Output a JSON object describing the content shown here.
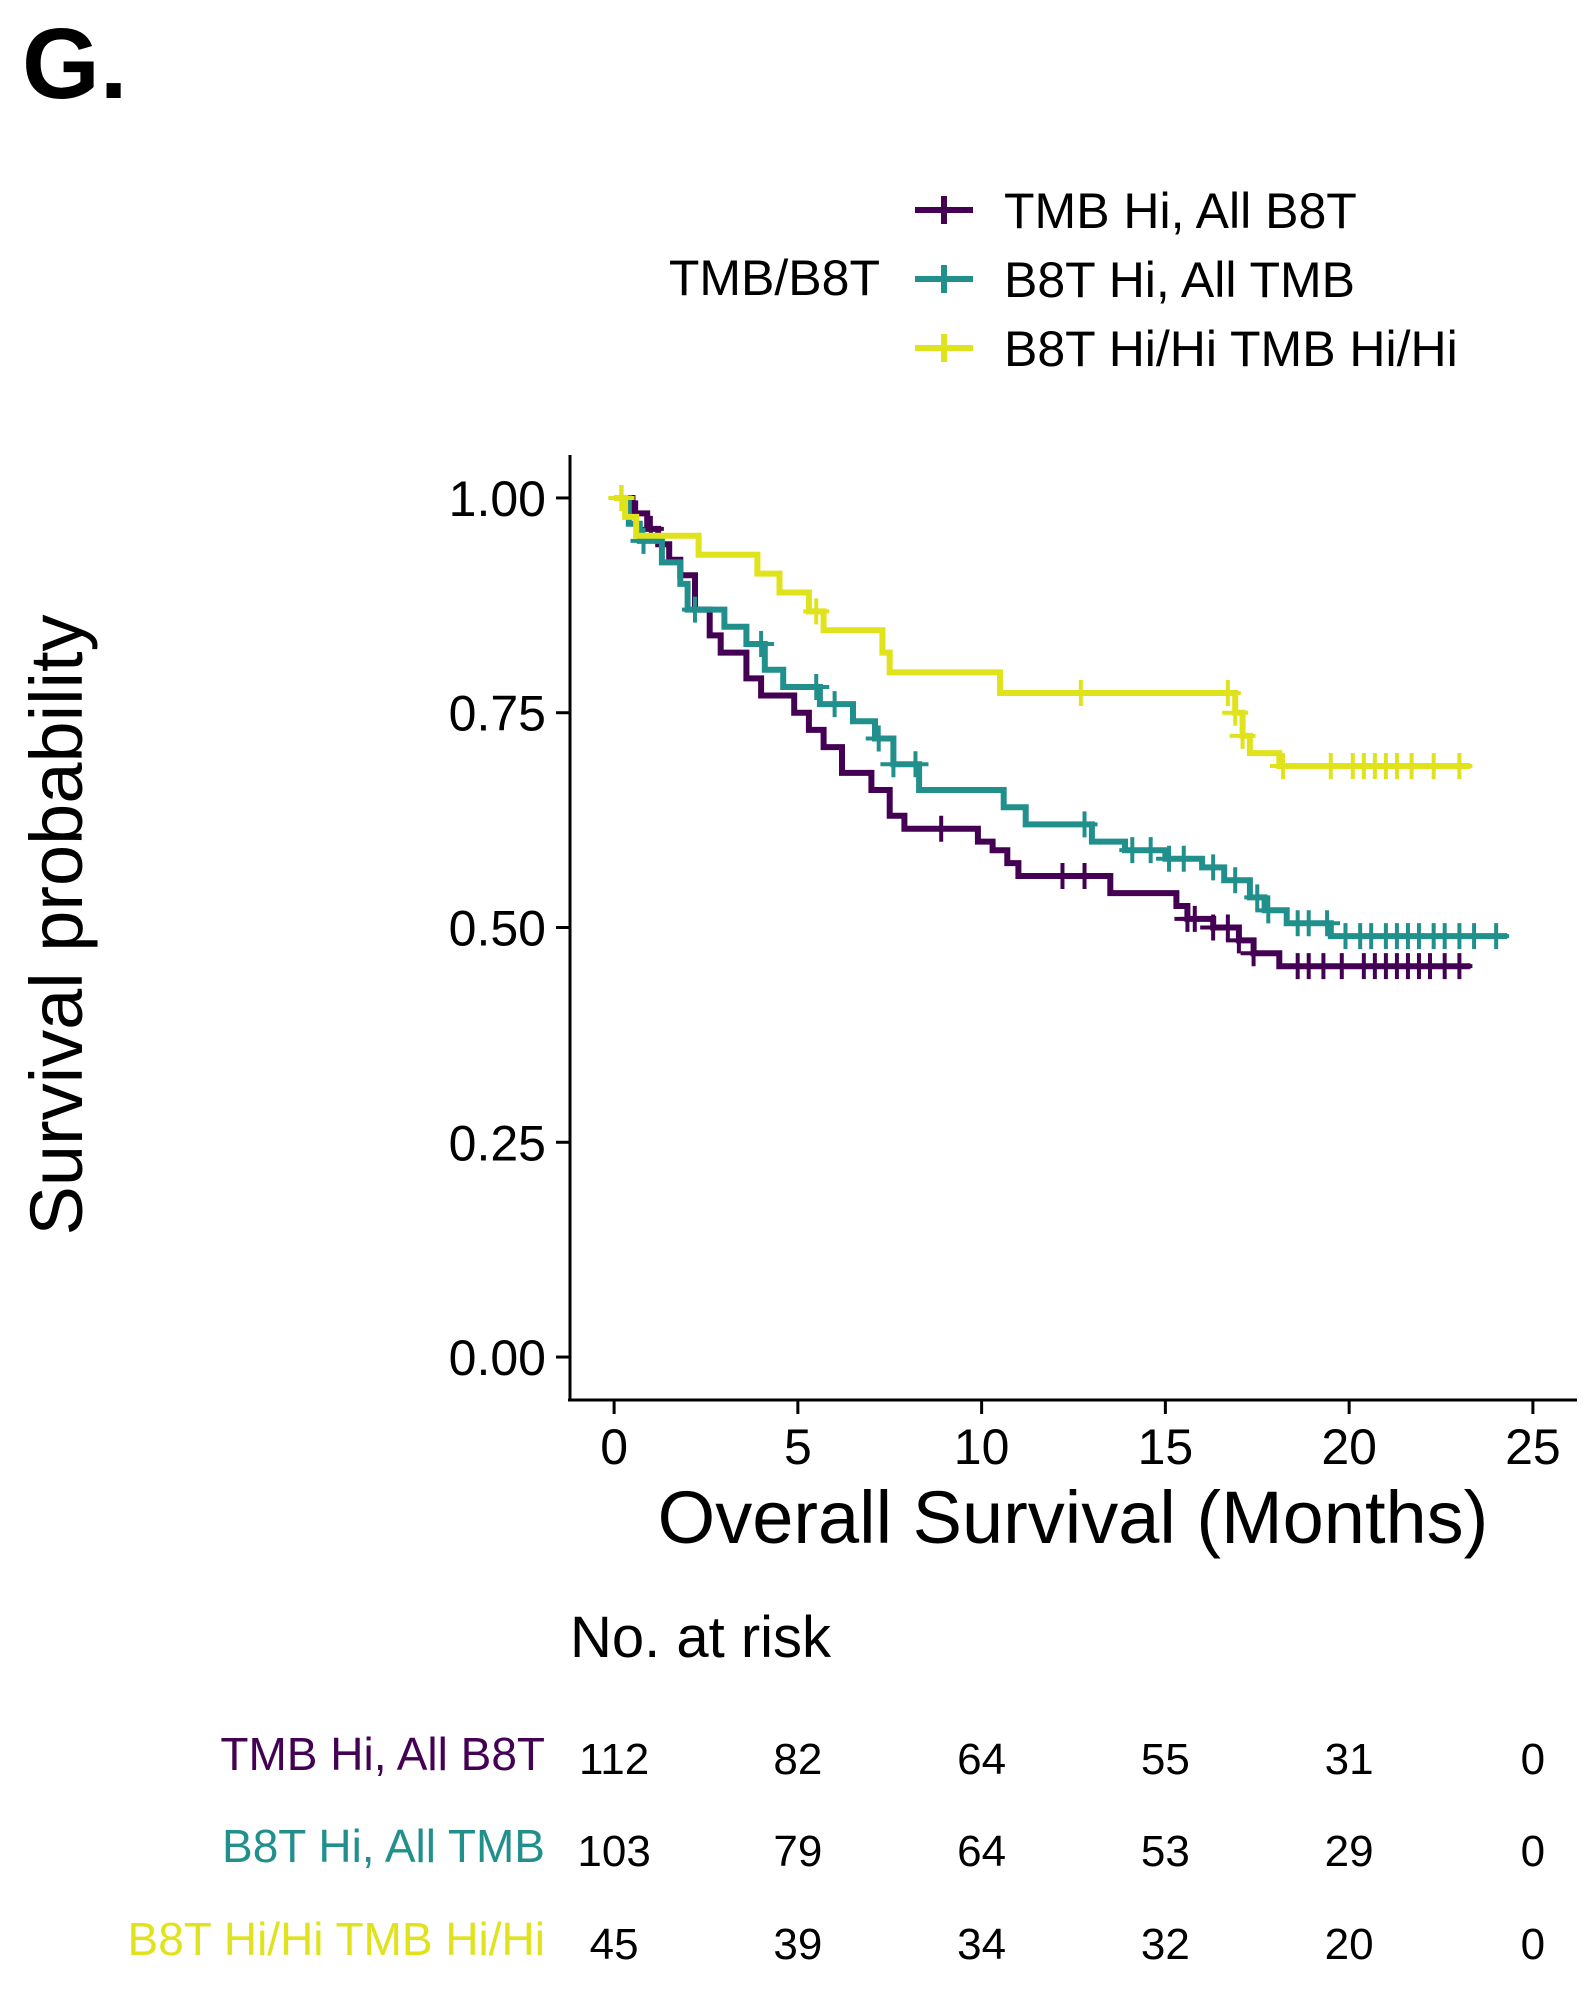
{
  "panel_label": "G.",
  "legend": {
    "title": "TMB/B8T",
    "entries": [
      "TMB Hi, All B8T",
      "B8T Hi, All TMB",
      "B8T Hi/Hi TMB Hi/Hi"
    ]
  },
  "risk_table": {
    "title": "No. at risk",
    "times": [
      0,
      5,
      10,
      15,
      20,
      25
    ],
    "rows": [
      {
        "label": "TMB Hi, All B8T",
        "color": "#440154",
        "counts": [
          "112",
          "82",
          "64",
          "55",
          "31",
          "0"
        ]
      },
      {
        "label": "B8T Hi, All TMB",
        "color": "#21908C",
        "counts": [
          "103",
          "79",
          "64",
          "53",
          "29",
          "0"
        ]
      },
      {
        "label": "B8T Hi/Hi TMB Hi/Hi",
        "color": "#E0E31B",
        "counts": [
          "45",
          "39",
          "34",
          "32",
          "20",
          "0"
        ]
      }
    ]
  },
  "chart_data": {
    "type": "line",
    "subtype": "kaplan-meier",
    "title": "",
    "xlabel": "Overall Survival (Months)",
    "ylabel": "Survival probability",
    "xlim": [
      -1.2,
      26.2
    ],
    "ylim": [
      -0.05,
      1.05
    ],
    "xticks": [
      0,
      5,
      10,
      15,
      20,
      25
    ],
    "yticks": [
      "0.00",
      "0.25",
      "0.50",
      "0.75",
      "1.00"
    ],
    "grid": false,
    "legend_position": "top",
    "series": [
      {
        "name": "TMB Hi, All B8T",
        "color": "#440154",
        "steps": [
          [
            0,
            1.0
          ],
          [
            0.5,
            0.982
          ],
          [
            0.9,
            0.964
          ],
          [
            1.2,
            0.946
          ],
          [
            1.5,
            0.928
          ],
          [
            1.8,
            0.91
          ],
          [
            2.2,
            0.87
          ],
          [
            2.6,
            0.84
          ],
          [
            2.9,
            0.82
          ],
          [
            3.6,
            0.79
          ],
          [
            4.0,
            0.77
          ],
          [
            4.9,
            0.75
          ],
          [
            5.3,
            0.73
          ],
          [
            5.7,
            0.71
          ],
          [
            6.2,
            0.68
          ],
          [
            7.0,
            0.66
          ],
          [
            7.5,
            0.63
          ],
          [
            7.9,
            0.615
          ],
          [
            9.9,
            0.6
          ],
          [
            10.3,
            0.59
          ],
          [
            10.7,
            0.575
          ],
          [
            11.0,
            0.56
          ],
          [
            13.5,
            0.54
          ],
          [
            13.8,
            0.54
          ],
          [
            15.0,
            0.54
          ],
          [
            15.3,
            0.525
          ],
          [
            15.6,
            0.51
          ],
          [
            16.3,
            0.5
          ],
          [
            17.0,
            0.485
          ],
          [
            17.4,
            0.47
          ],
          [
            18.1,
            0.455
          ],
          [
            23.3,
            0.455
          ]
        ],
        "censor_x": [
          0.2,
          0.6,
          1.0,
          8.9,
          12.2,
          12.8,
          15.6,
          15.8,
          16.3,
          16.7,
          17.0,
          17.4,
          18.6,
          18.9,
          19.3,
          19.8,
          20.4,
          20.7,
          21.0,
          21.3,
          21.6,
          21.9,
          22.2,
          22.6,
          23.0
        ]
      },
      {
        "name": "B8T Hi, All TMB",
        "color": "#21908C",
        "steps": [
          [
            0,
            1.0
          ],
          [
            0.4,
            0.97
          ],
          [
            0.7,
            0.95
          ],
          [
            1.3,
            0.925
          ],
          [
            1.8,
            0.9
          ],
          [
            2.0,
            0.87
          ],
          [
            3.0,
            0.85
          ],
          [
            3.6,
            0.83
          ],
          [
            4.1,
            0.8
          ],
          [
            4.6,
            0.78
          ],
          [
            5.6,
            0.76
          ],
          [
            6.5,
            0.74
          ],
          [
            7.1,
            0.72
          ],
          [
            7.6,
            0.69
          ],
          [
            8.3,
            0.66
          ],
          [
            10.6,
            0.64
          ],
          [
            11.2,
            0.62
          ],
          [
            13.0,
            0.6
          ],
          [
            13.9,
            0.59
          ],
          [
            15.0,
            0.58
          ],
          [
            16.0,
            0.57
          ],
          [
            16.6,
            0.555
          ],
          [
            17.3,
            0.535
          ],
          [
            17.7,
            0.52
          ],
          [
            18.3,
            0.505
          ],
          [
            19.5,
            0.49
          ],
          [
            24.3,
            0.49
          ]
        ],
        "censor_x": [
          0.8,
          2.2,
          4.0,
          5.5,
          6.0,
          7.2,
          7.6,
          8.2,
          12.8,
          14.1,
          14.6,
          15.1,
          15.5,
          16.3,
          16.9,
          17.5,
          17.8,
          18.6,
          18.9,
          19.4,
          19.9,
          20.3,
          20.6,
          21.0,
          21.3,
          21.6,
          21.9,
          22.3,
          22.6,
          23.0,
          23.4,
          24.0
        ]
      },
      {
        "name": "B8T Hi/Hi TMB Hi/Hi",
        "color": "#E0E31B",
        "steps": [
          [
            0,
            1.0
          ],
          [
            0.3,
            0.978
          ],
          [
            0.6,
            0.956
          ],
          [
            2.3,
            0.934
          ],
          [
            3.9,
            0.912
          ],
          [
            4.5,
            0.89
          ],
          [
            5.3,
            0.868
          ],
          [
            5.7,
            0.846
          ],
          [
            7.3,
            0.82
          ],
          [
            7.5,
            0.797
          ],
          [
            10.5,
            0.773
          ],
          [
            16.9,
            0.75
          ],
          [
            17.1,
            0.723
          ],
          [
            17.3,
            0.703
          ],
          [
            18.1,
            0.688
          ],
          [
            23.3,
            0.688
          ]
        ],
        "censor_x": [
          0.2,
          5.5,
          12.7,
          16.7,
          16.9,
          17.1,
          18.2,
          19.5,
          20.1,
          20.4,
          20.7,
          21.0,
          21.3,
          21.7,
          22.3,
          23.0
        ]
      }
    ]
  }
}
